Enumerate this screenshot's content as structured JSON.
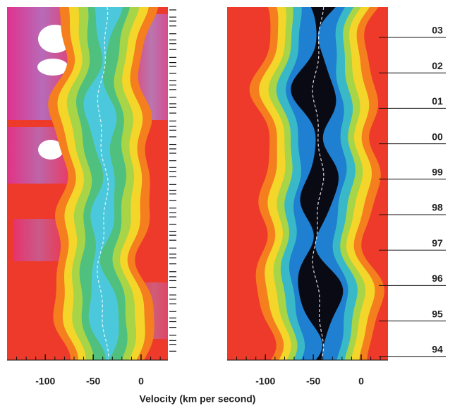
{
  "chart_data": {
    "type": "heatmap",
    "xlabel": "Velocity (km per second)",
    "xlim": [
      -140,
      28
    ],
    "xticks": [
      -100,
      -50,
      0
    ],
    "xminor": [
      -130,
      -120,
      -110,
      -90,
      -80,
      -70,
      -60,
      -40,
      -30,
      -20,
      -10,
      10,
      20
    ],
    "categories": [
      "03",
      "02",
      "01",
      "00",
      "99",
      "98",
      "97",
      "96",
      "95",
      "94"
    ]
  }
}
